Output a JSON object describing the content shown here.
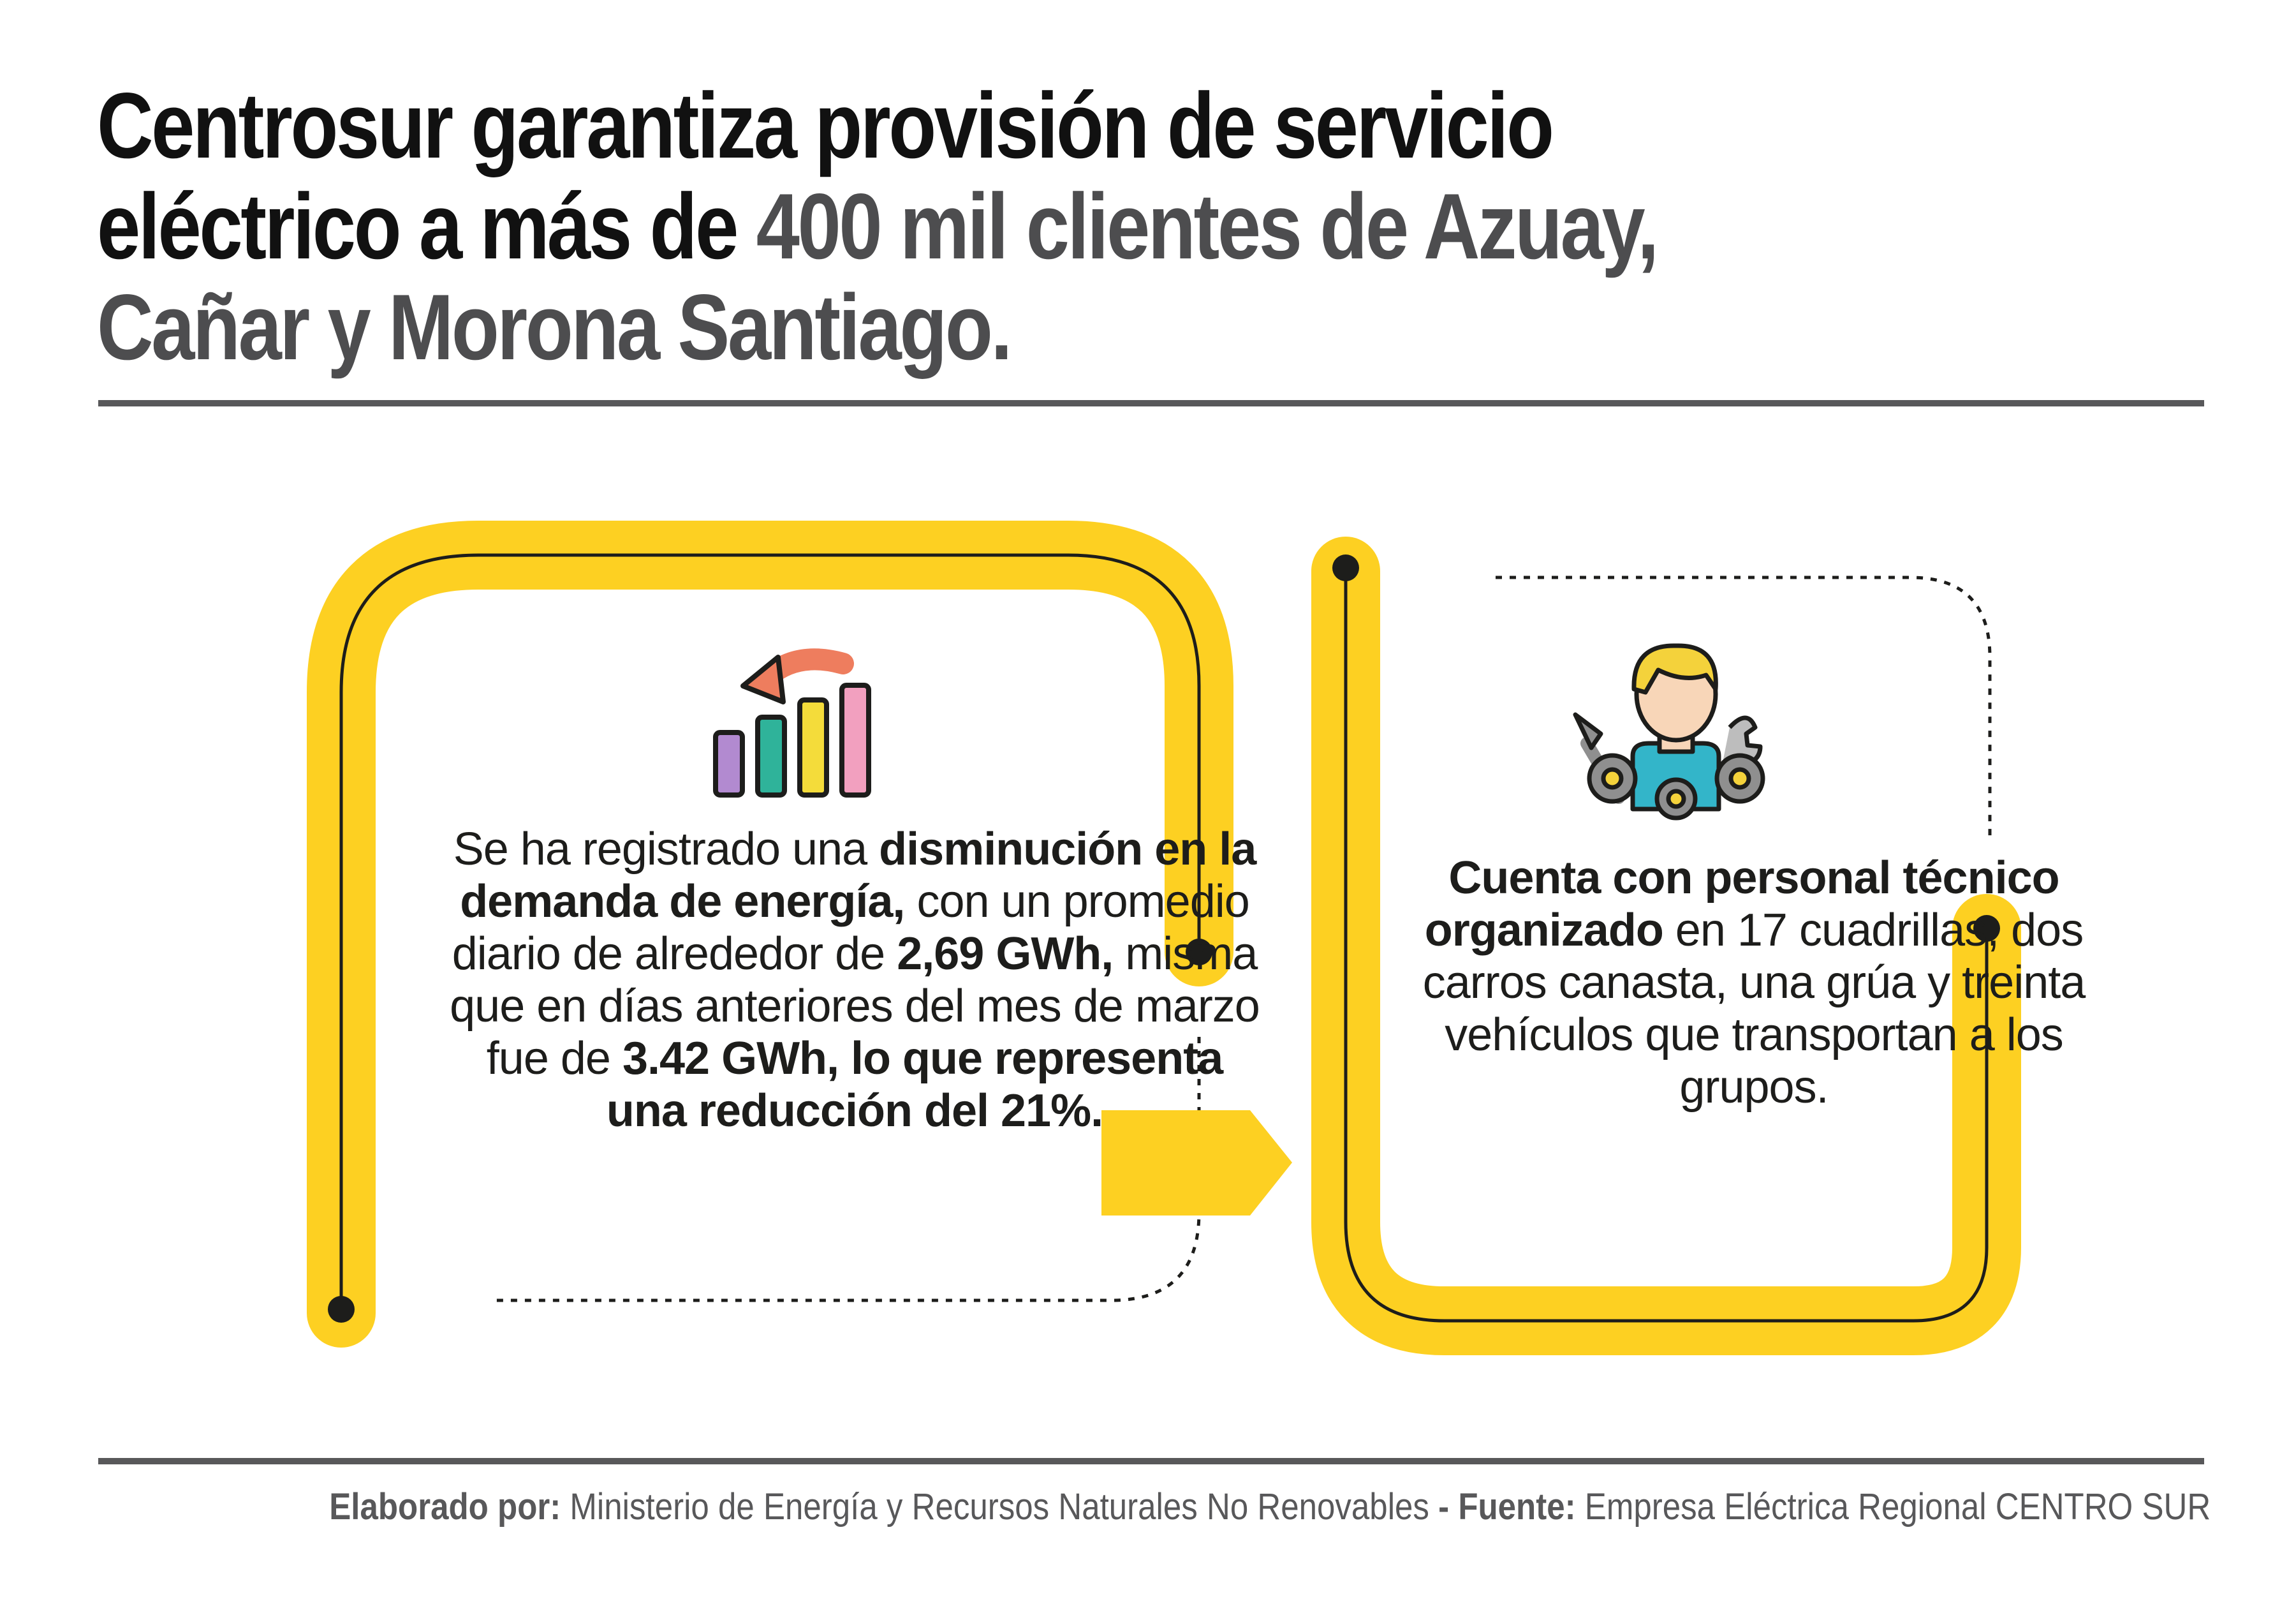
{
  "header": {
    "title_part1": "Centrosur garantiza provisión de servicio eléctrico a más de ",
    "title_highlight": "400 mil clientes de Azuay, Cañar y Morona Santiago."
  },
  "left_card": {
    "icon": "bar-chart-decrease-icon",
    "t1": "Se ha registrado una ",
    "b1": "disminución en la demanda de energía,",
    "t2": " con un promedio diario de alrededor de ",
    "b2": "2,69 GWh,",
    "t3": " misma que en días anteriores del mes de marzo fue de ",
    "b3": "3.42 GWh, lo que representa una reducción del 21%."
  },
  "right_card": {
    "icon": "technician-with-tools-icon",
    "b1": "Cuenta con personal técnico organizado",
    "t1": " en 17 cuadrillas, dos carros canasta, una grúa y treinta vehículos que transportan a los grupos."
  },
  "footer": {
    "label1": "Elaborado por:",
    "value1": " Ministerio de Energía y Recursos Naturales No Renovables",
    "sep": " -  ",
    "label2": "Fuente:",
    "value2": " Empresa Eléctrica Regional CENTRO SUR"
  },
  "colors": {
    "accent_yellow": "#fdd022",
    "title_highlight": "#4d4d4f",
    "text": "#1d1d1b"
  }
}
